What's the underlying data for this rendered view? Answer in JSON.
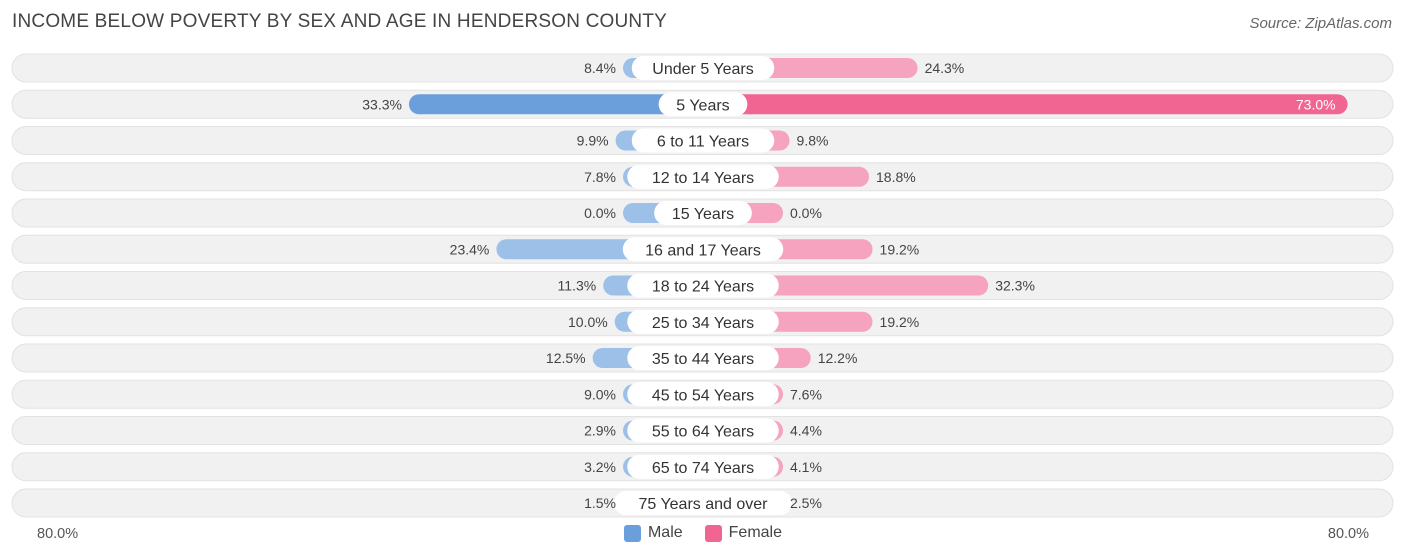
{
  "title": "INCOME BELOW POVERTY BY SEX AND AGE IN HENDERSON COUNTY",
  "source": "Source: ZipAtlas.com",
  "axis": {
    "left_label": "80.0%",
    "right_label": "80.0%"
  },
  "legend": {
    "male_label": "Male",
    "female_label": "Female"
  },
  "colors": {
    "male": "#9dc0e8",
    "male_strong": "#6a9fdc",
    "female": "#f5a3bf",
    "female_strong": "#f06592",
    "row_bg": "#f1f1f1"
  },
  "chart_data": {
    "type": "bar",
    "orientation": "diverging-horizontal",
    "title": "INCOME BELOW POVERTY BY SEX AND AGE IN HENDERSON COUNTY",
    "xlim": [
      -80,
      80
    ],
    "categories": [
      "Under 5 Years",
      "5 Years",
      "6 to 11 Years",
      "12 to 14 Years",
      "15 Years",
      "16 and 17 Years",
      "18 to 24 Years",
      "25 to 34 Years",
      "35 to 44 Years",
      "45 to 54 Years",
      "55 to 64 Years",
      "65 to 74 Years",
      "75 Years and over"
    ],
    "series": [
      {
        "name": "Male",
        "values": [
          8.4,
          33.3,
          9.9,
          7.8,
          0.0,
          23.4,
          11.3,
          10.0,
          12.5,
          9.0,
          2.9,
          3.2,
          1.5
        ],
        "labels": [
          "8.4%",
          "33.3%",
          "9.9%",
          "7.8%",
          "0.0%",
          "23.4%",
          "11.3%",
          "10.0%",
          "12.5%",
          "9.0%",
          "2.9%",
          "3.2%",
          "1.5%"
        ]
      },
      {
        "name": "Female",
        "values": [
          24.3,
          73.0,
          9.8,
          18.8,
          0.0,
          19.2,
          32.3,
          19.2,
          12.2,
          7.6,
          4.4,
          4.1,
          2.5
        ],
        "labels": [
          "24.3%",
          "73.0%",
          "9.8%",
          "18.8%",
          "0.0%",
          "19.2%",
          "32.3%",
          "19.2%",
          "12.2%",
          "7.6%",
          "4.4%",
          "4.1%",
          "2.5%"
        ]
      }
    ],
    "legend_position": "bottom-center"
  }
}
